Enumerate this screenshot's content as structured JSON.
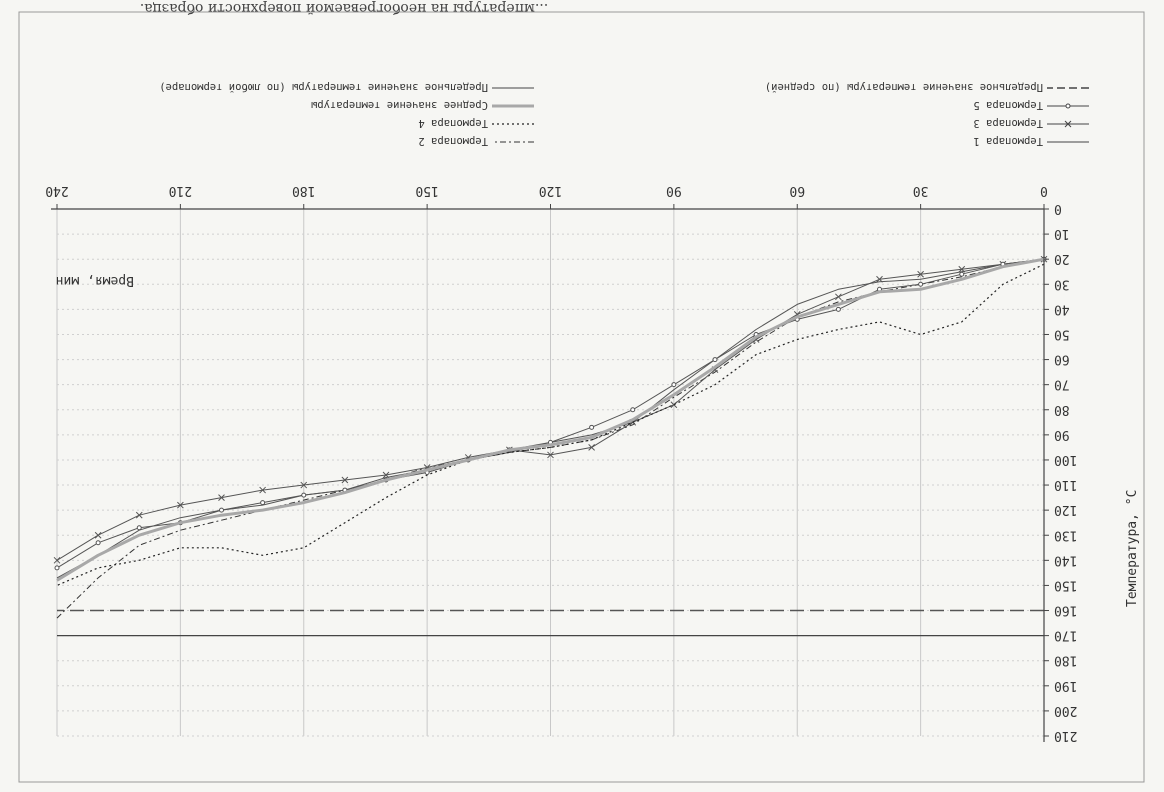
{
  "caption": "...мпературы на необогреваемой поверхности образца.",
  "chart_data": {
    "type": "line",
    "xlabel": "Время, мин",
    "ylabel": "Температура, °С",
    "xlim": [
      0,
      240
    ],
    "ylim": [
      0,
      210
    ],
    "xticks": [
      0,
      30,
      60,
      90,
      120,
      150,
      180,
      210,
      240
    ],
    "yticks": [
      0,
      10,
      20,
      30,
      40,
      50,
      60,
      70,
      80,
      90,
      100,
      110,
      120,
      130,
      140,
      150,
      160,
      170,
      180,
      190,
      200,
      210
    ],
    "grid": true,
    "legend_left": [
      {
        "name": "Термопара 1",
        "style": "solid"
      },
      {
        "name": "Термопара 3",
        "style": "cross"
      },
      {
        "name": "Термопара 5",
        "style": "circle"
      },
      {
        "name": "Предельное значение температуры (по средней)",
        "style": "dash"
      }
    ],
    "legend_right": [
      {
        "name": "Термопара 2",
        "style": "dashdot"
      },
      {
        "name": "Термопара 4",
        "style": "dot"
      },
      {
        "name": "Среднее значение температуры",
        "style": "thickgray"
      },
      {
        "name": "Предельное значение температуры (по любой термопаре)",
        "style": "solid"
      }
    ],
    "limit_average": 160,
    "limit_any": 170,
    "x": [
      0,
      10,
      20,
      30,
      40,
      50,
      60,
      70,
      80,
      90,
      100,
      110,
      120,
      130,
      140,
      150,
      160,
      170,
      180,
      190,
      200,
      210,
      220,
      230,
      240
    ],
    "series": [
      {
        "name": "Термопара 1",
        "values": [
          20,
          22,
          25,
          28,
          29,
          32,
          38,
          48,
          60,
          72,
          85,
          90,
          93,
          97,
          100,
          104,
          107,
          112,
          114,
          118,
          120,
          123,
          128,
          138,
          147
        ]
      },
      {
        "name": "Термопара 2",
        "values": [
          20,
          23,
          27,
          30,
          33,
          37,
          43,
          53,
          65,
          75,
          86,
          92,
          95,
          97,
          100,
          103,
          108,
          112,
          116,
          120,
          124,
          128,
          134,
          147,
          163
        ]
      },
      {
        "name": "Термопара 3",
        "values": [
          20,
          22,
          24,
          26,
          28,
          35,
          42,
          52,
          64,
          78,
          85,
          95,
          98,
          96,
          99,
          103,
          106,
          108,
          110,
          112,
          115,
          118,
          122,
          130,
          140
        ]
      },
      {
        "name": "Термопара 4",
        "values": [
          22,
          30,
          45,
          50,
          45,
          48,
          52,
          58,
          70,
          78,
          85,
          92,
          95,
          97,
          100,
          106,
          115,
          125,
          135,
          138,
          135,
          135,
          140,
          143,
          150
        ]
      },
      {
        "name": "Термопара 5",
        "values": [
          20,
          22,
          26,
          30,
          32,
          40,
          44,
          50,
          60,
          70,
          80,
          87,
          93,
          96,
          100,
          105,
          108,
          112,
          114,
          117,
          120,
          125,
          127,
          133,
          143
        ]
      },
      {
        "name": "Среднее значение температуры",
        "values": [
          20,
          23,
          28,
          32,
          33,
          38,
          43,
          51,
          63,
          74,
          84,
          91,
          94,
          96,
          100,
          104,
          108,
          113,
          117,
          120,
          122,
          125,
          130,
          138,
          148
        ]
      }
    ]
  }
}
